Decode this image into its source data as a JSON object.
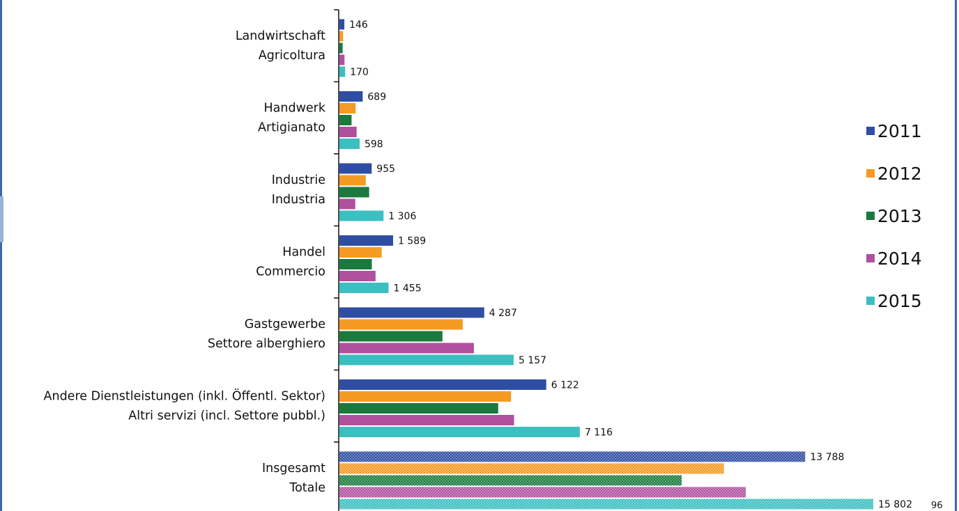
{
  "page_number": "96",
  "chart_data": {
    "type": "bar",
    "orientation": "horizontal",
    "title": "",
    "xlabel": "",
    "ylabel": "",
    "xlim": [
      0,
      16000
    ],
    "grid": false,
    "legend_position": "right",
    "categories": [
      [
        "Landwirtschaft",
        "Agricoltura"
      ],
      [
        "Handwerk",
        "Artigianato"
      ],
      [
        "Industrie",
        "Industria"
      ],
      [
        "Handel",
        "Commercio"
      ],
      [
        "Gastgewerbe",
        "Settore alberghiero"
      ],
      [
        "Andere Dienstleistungen (inkl. Öffentl. Sektor)",
        "Altri servizi (incl. Settore pubbl.)"
      ],
      [
        "Insgesamt",
        "Totale"
      ]
    ],
    "series": [
      {
        "name": "2011",
        "color": "#2f4ea3",
        "values": [
          146,
          689,
          955,
          1589,
          4287,
          6122,
          13788
        ]
      },
      {
        "name": "2012",
        "color": "#f59a23",
        "values": [
          110,
          480,
          780,
          1250,
          3650,
          5080,
          11380
        ]
      },
      {
        "name": "2013",
        "color": "#1a7a3e",
        "values": [
          95,
          360,
          880,
          960,
          3050,
          4700,
          10130
        ]
      },
      {
        "name": "2014",
        "color": "#b0509f",
        "values": [
          150,
          510,
          470,
          1070,
          3980,
          5170,
          12030
        ]
      },
      {
        "name": "2015",
        "color": "#3cbfc0",
        "values": [
          170,
          598,
          1306,
          1455,
          5157,
          7116,
          15802
        ]
      }
    ],
    "data_labels": [
      [
        "146",
        "689",
        "955",
        "1 589",
        "4 287",
        "6 122",
        "13 788"
      ],
      [],
      [],
      [],
      [
        "170",
        "598",
        "1 306",
        "1 455",
        "5 157",
        "7 116",
        "15 802"
      ]
    ],
    "patterned_category": "Insgesamt"
  }
}
